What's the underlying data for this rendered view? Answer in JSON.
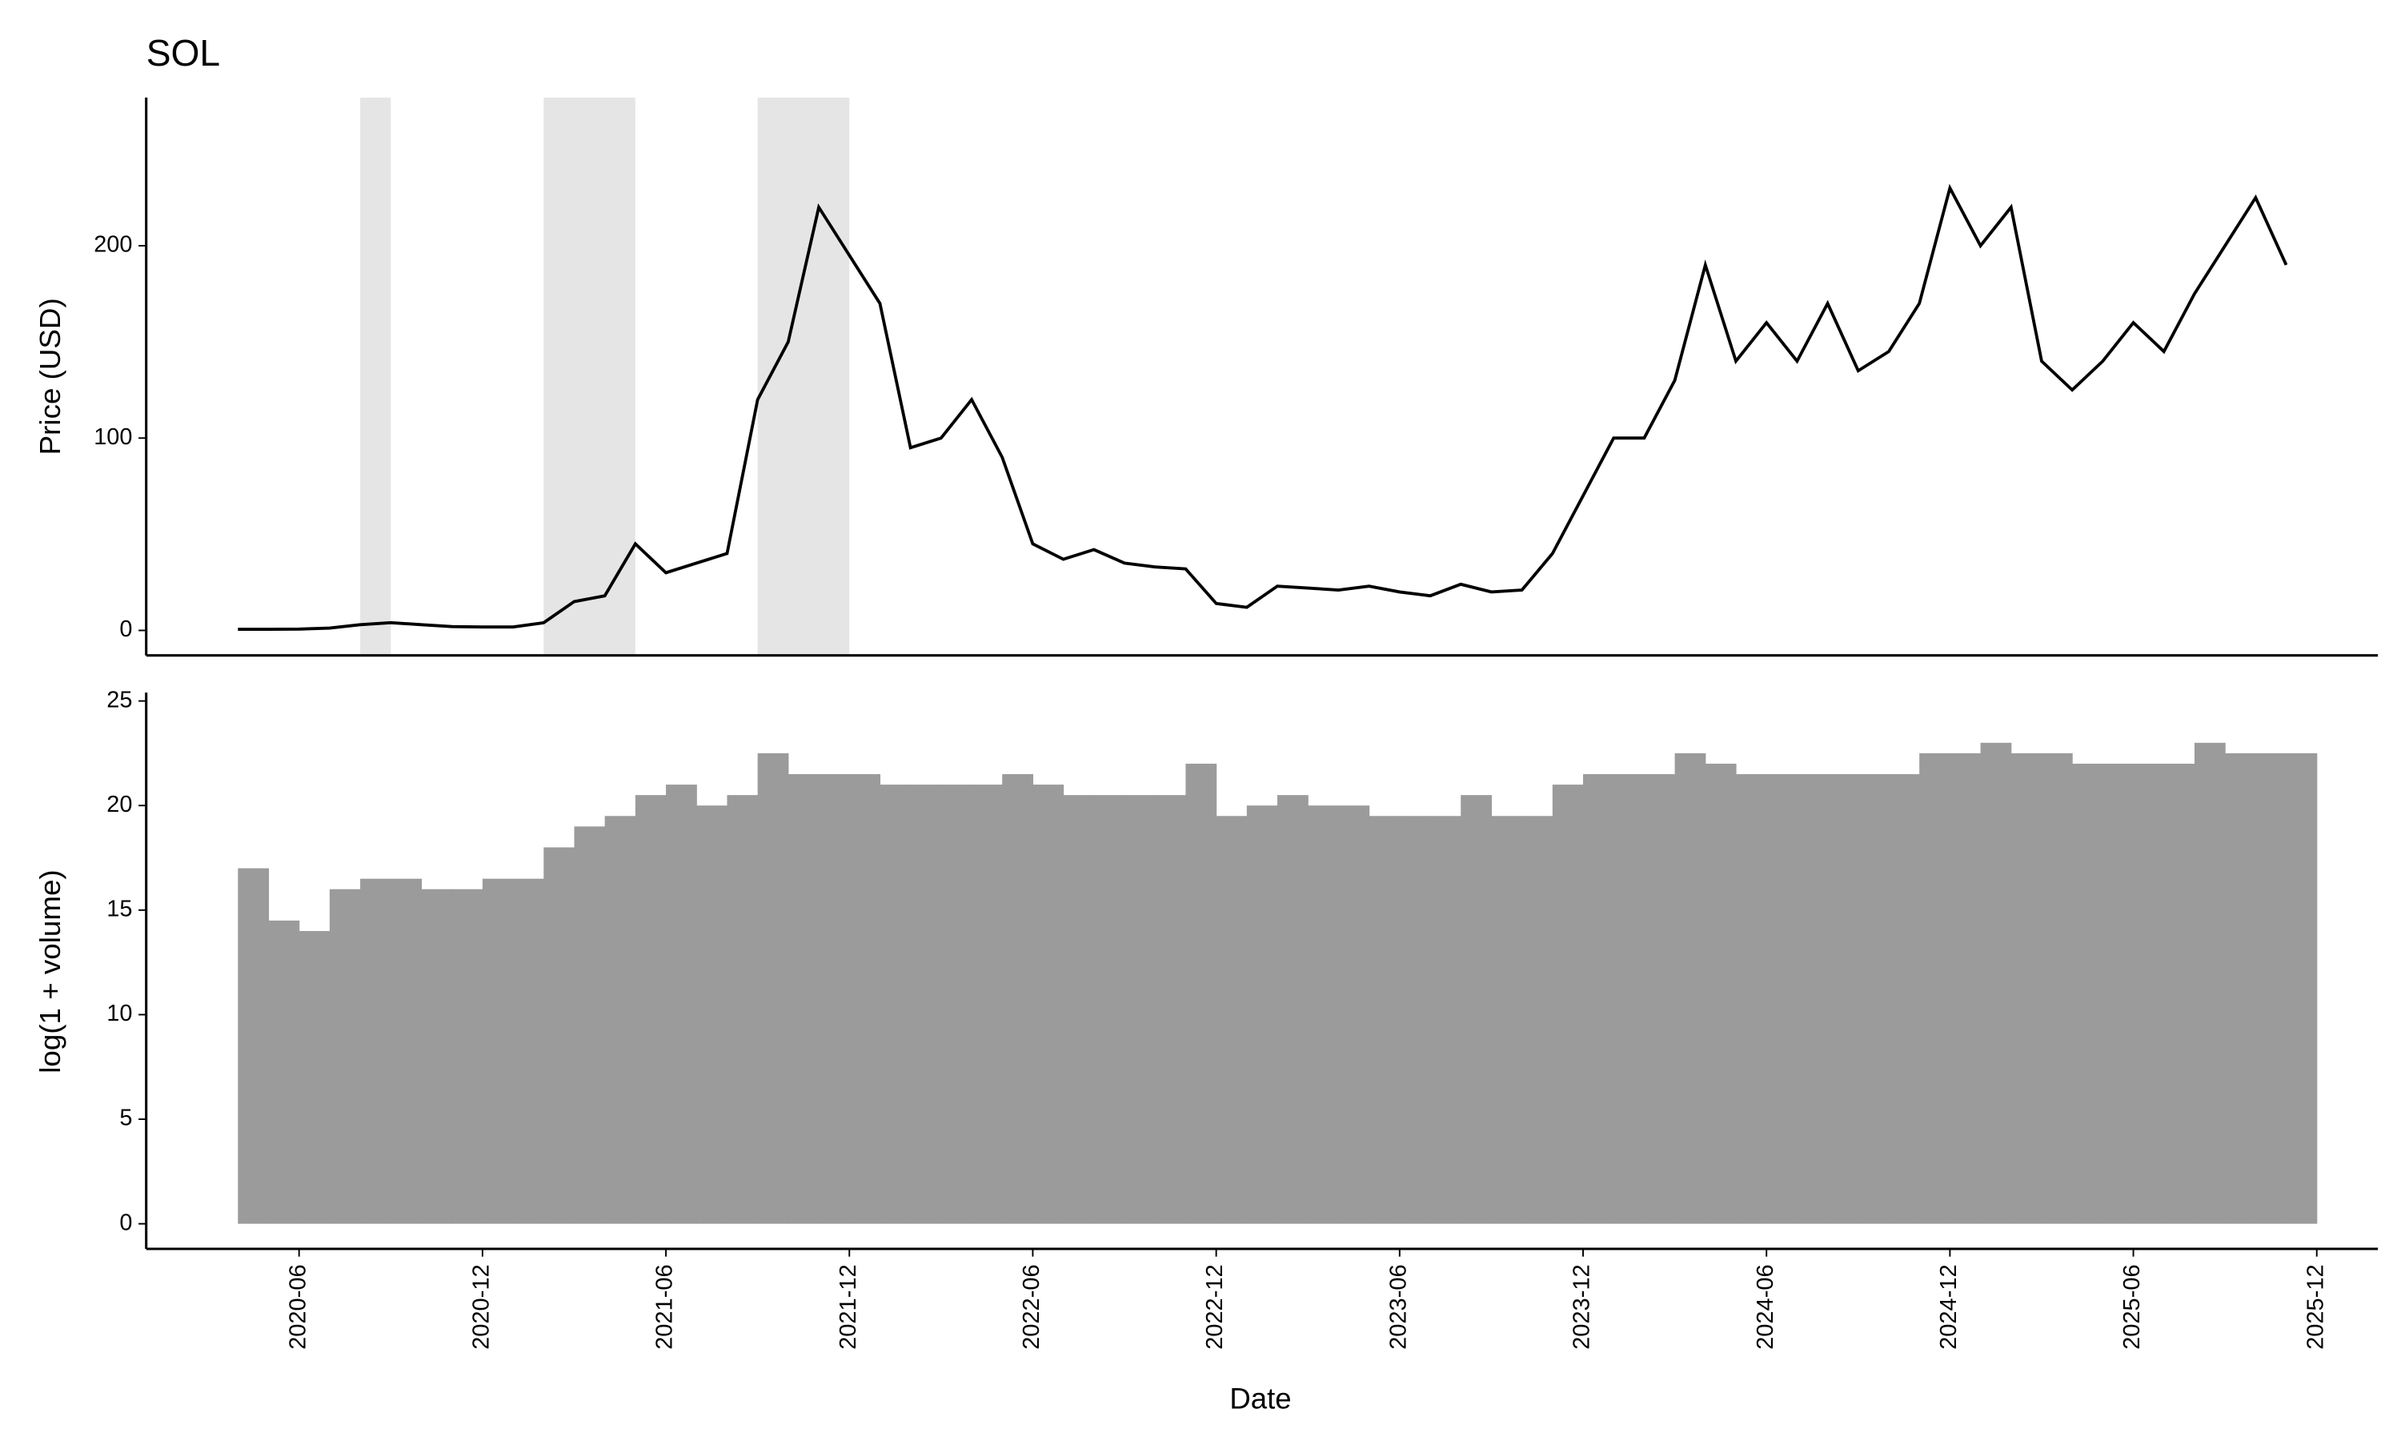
{
  "chart_data": [
    {
      "type": "line",
      "title": "SOL",
      "y_label": "Price (USD)",
      "color": "#000000",
      "shade_color": "#e5e5e5",
      "x": [
        "2020-04",
        "2020-05",
        "2020-06",
        "2020-07",
        "2020-08",
        "2020-09",
        "2020-10",
        "2020-11",
        "2020-12",
        "2021-01",
        "2021-02",
        "2021-03",
        "2021-04",
        "2021-05",
        "2021-06",
        "2021-07",
        "2021-08",
        "2021-09",
        "2021-10",
        "2021-11",
        "2021-12",
        "2022-01",
        "2022-02",
        "2022-03",
        "2022-04",
        "2022-05",
        "2022-06",
        "2022-07",
        "2022-08",
        "2022-09",
        "2022-10",
        "2022-11",
        "2022-12",
        "2023-01",
        "2023-02",
        "2023-03",
        "2023-04",
        "2023-05",
        "2023-06",
        "2023-07",
        "2023-08",
        "2023-09",
        "2023-10",
        "2023-11",
        "2023-12",
        "2024-01",
        "2024-02",
        "2024-03",
        "2024-04",
        "2024-05",
        "2024-06",
        "2024-07",
        "2024-08",
        "2024-09",
        "2024-10",
        "2024-11",
        "2024-12",
        "2025-01",
        "2025-02",
        "2025-03",
        "2025-04",
        "2025-05",
        "2025-06",
        "2025-07",
        "2025-08",
        "2025-09",
        "2025-10",
        "2025-11"
      ],
      "values": [
        0.6,
        0.6,
        0.7,
        1.2,
        3,
        4,
        3,
        2,
        1.8,
        1.8,
        4,
        15,
        18,
        45,
        30,
        35,
        40,
        120,
        150,
        220,
        195,
        170,
        95,
        100,
        120,
        90,
        45,
        37,
        42,
        35,
        33,
        32,
        14,
        12,
        23,
        22,
        21,
        23,
        20,
        18,
        24,
        20,
        21,
        40,
        70,
        100,
        100,
        130,
        190,
        140,
        160,
        140,
        170,
        135,
        145,
        170,
        230,
        200,
        220,
        140,
        125,
        140,
        160,
        145,
        175,
        200,
        225,
        190
      ],
      "shaded": [
        [
          "2020-08",
          "2020-09"
        ],
        [
          "2021-02",
          "2021-05"
        ],
        [
          "2021-09",
          "2021-12"
        ]
      ],
      "xlim": [
        "2020-01",
        "2026-02"
      ],
      "ylim": [
        -13,
        277
      ],
      "yticks": [
        0,
        100,
        200
      ]
    },
    {
      "type": "bar",
      "y_label": "log(1 + volume)",
      "x_label": "Date",
      "color": "#9b9b9b",
      "x": [
        "2020-04",
        "2020-05",
        "2020-06",
        "2020-07",
        "2020-08",
        "2020-09",
        "2020-10",
        "2020-11",
        "2020-12",
        "2021-01",
        "2021-02",
        "2021-03",
        "2021-04",
        "2021-05",
        "2021-06",
        "2021-07",
        "2021-08",
        "2021-09",
        "2021-10",
        "2021-11",
        "2021-12",
        "2022-01",
        "2022-02",
        "2022-03",
        "2022-04",
        "2022-05",
        "2022-06",
        "2022-07",
        "2022-08",
        "2022-09",
        "2022-10",
        "2022-11",
        "2022-12",
        "2023-01",
        "2023-02",
        "2023-03",
        "2023-04",
        "2023-05",
        "2023-06",
        "2023-07",
        "2023-08",
        "2023-09",
        "2023-10",
        "2023-11",
        "2023-12",
        "2024-01",
        "2024-02",
        "2024-03",
        "2024-04",
        "2024-05",
        "2024-06",
        "2024-07",
        "2024-08",
        "2024-09",
        "2024-10",
        "2024-11",
        "2024-12",
        "2025-01",
        "2025-02",
        "2025-03",
        "2025-04",
        "2025-05",
        "2025-06",
        "2025-07",
        "2025-08",
        "2025-09",
        "2025-10",
        "2025-11"
      ],
      "values": [
        17,
        14.5,
        14,
        16,
        16.5,
        16.5,
        16,
        16,
        16.5,
        16.5,
        18,
        19,
        19.5,
        20.5,
        21,
        20,
        20.5,
        22.5,
        21.5,
        21.5,
        21.5,
        21,
        21,
        21,
        21,
        21.5,
        21,
        20.5,
        20.5,
        20.5,
        20.5,
        22,
        19.5,
        20,
        20.5,
        20,
        20,
        19.5,
        19.5,
        19.5,
        20.5,
        19.5,
        19.5,
        21,
        21.5,
        21.5,
        21.5,
        22.5,
        22,
        21.5,
        21.5,
        21.5,
        21.5,
        21.5,
        21.5,
        22.5,
        22.5,
        23,
        22.5,
        22.5,
        22,
        22,
        22,
        22,
        23,
        22.5,
        22.5,
        22.5
      ],
      "xlim": [
        "2020-01",
        "2026-02"
      ],
      "ylim": [
        -1.2,
        25.4
      ],
      "yticks": [
        0,
        5,
        10,
        15,
        20,
        25
      ],
      "xticks": [
        "2020-06",
        "2020-12",
        "2021-06",
        "2021-12",
        "2022-06",
        "2022-12",
        "2023-06",
        "2023-12",
        "2024-06",
        "2024-12",
        "2025-06",
        "2025-12"
      ]
    }
  ]
}
